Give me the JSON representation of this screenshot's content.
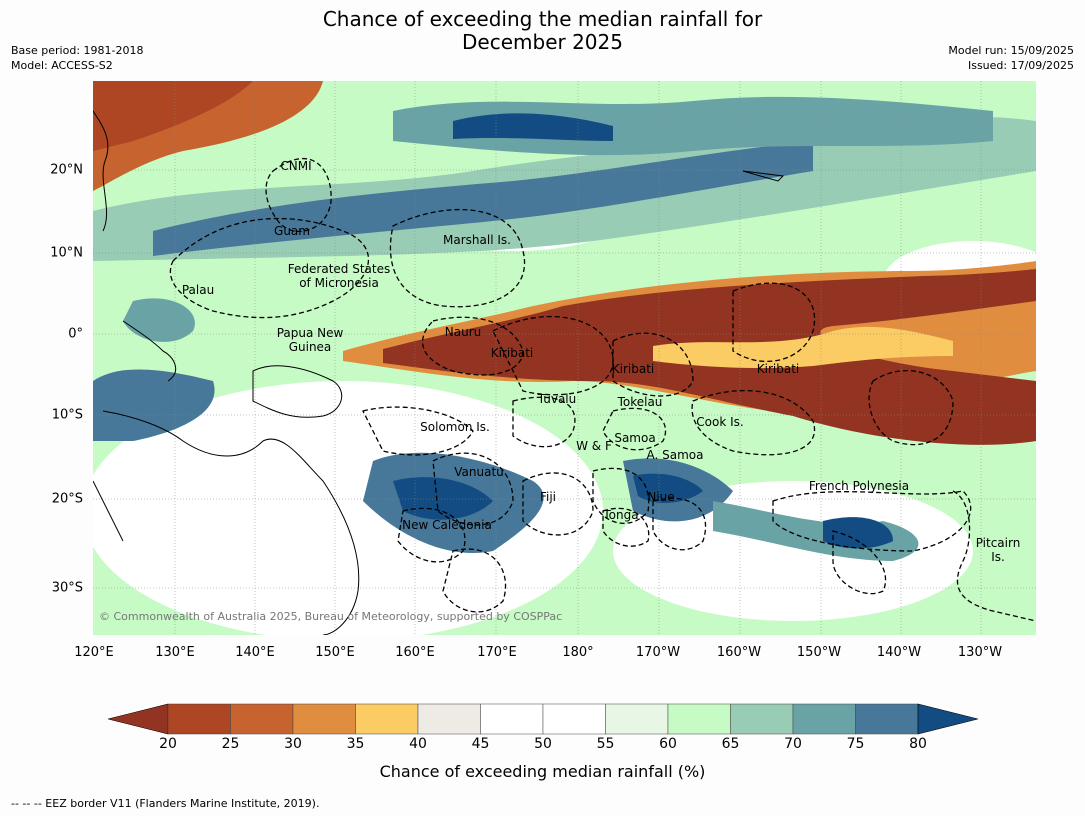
{
  "title_line1": "Chance of exceeding the median rainfall for",
  "title_line2": "December 2025",
  "meta_left": {
    "base_period": "Base period: 1981-2018",
    "model": "Model: ACCESS-S2"
  },
  "meta_right": {
    "model_run": "Model run: 15/09/2025",
    "issued": "Issued: 17/09/2025"
  },
  "lon_labels": [
    "120°E",
    "130°E",
    "140°E",
    "150°E",
    "160°E",
    "170°E",
    "180°",
    "170°W",
    "160°W",
    "150°W",
    "140°W",
    "130°W"
  ],
  "lat_labels": [
    "20°N",
    "10°N",
    "0°",
    "10°S",
    "20°S",
    "30°S"
  ],
  "places": {
    "cnmi": "CNMI",
    "guam": "Guam",
    "marshall": "Marshall Is.",
    "fsm1": "Federated States",
    "fsm2": "of Micronesia",
    "palau": "Palau",
    "nauru": "Nauru",
    "png1": "Papua New",
    "png2": "Guinea",
    "kiribati_w": "Kiribati",
    "kiribati_c": "Kiribati",
    "kiribati_e": "Kiribati",
    "tuvalu": "Tuvalu",
    "tokelau": "Tokelau",
    "solomon": "Solomon Is.",
    "cook": "Cook Is.",
    "wf": "W & F",
    "samoa": "Samoa",
    "asamoa": "A. Samoa",
    "vanuatu": "Vanuatu",
    "fiji": "Fiji",
    "niue": "Niue",
    "frenchpoly": "French Polynesia",
    "tonga": "Tonga",
    "newcal": "New Caledonia",
    "pitcairn1": "Pitcairn",
    "pitcairn2": "Is."
  },
  "copyright": "© Commonwealth of Australia 2025, Bureau of Meteorology, supported by COSPPac",
  "colorbar": {
    "label": "Chance of exceeding median rainfall (%)",
    "ticks": [
      "20",
      "25",
      "30",
      "35",
      "40",
      "45",
      "50",
      "55",
      "60",
      "65",
      "70",
      "75",
      "80"
    ],
    "below_color": "#923421",
    "above_color": "#124c82",
    "colors": [
      "#ae4523",
      "#c6632e",
      "#e08d3f",
      "#fbcb64",
      "#eeebe5",
      "#ffffff",
      "#ffffff",
      "#e8f6e5",
      "#c7fbc5",
      "#98ccb4",
      "#6aa3a5",
      "#477899"
    ]
  },
  "footer": "--  --  -- EEZ border V11 (Flanders Marine Institute, 2019).",
  "map_colors": {
    "dry_strong": "#923421",
    "wet_strong": "#124c82",
    "land_neutral": "#eeebe5"
  }
}
